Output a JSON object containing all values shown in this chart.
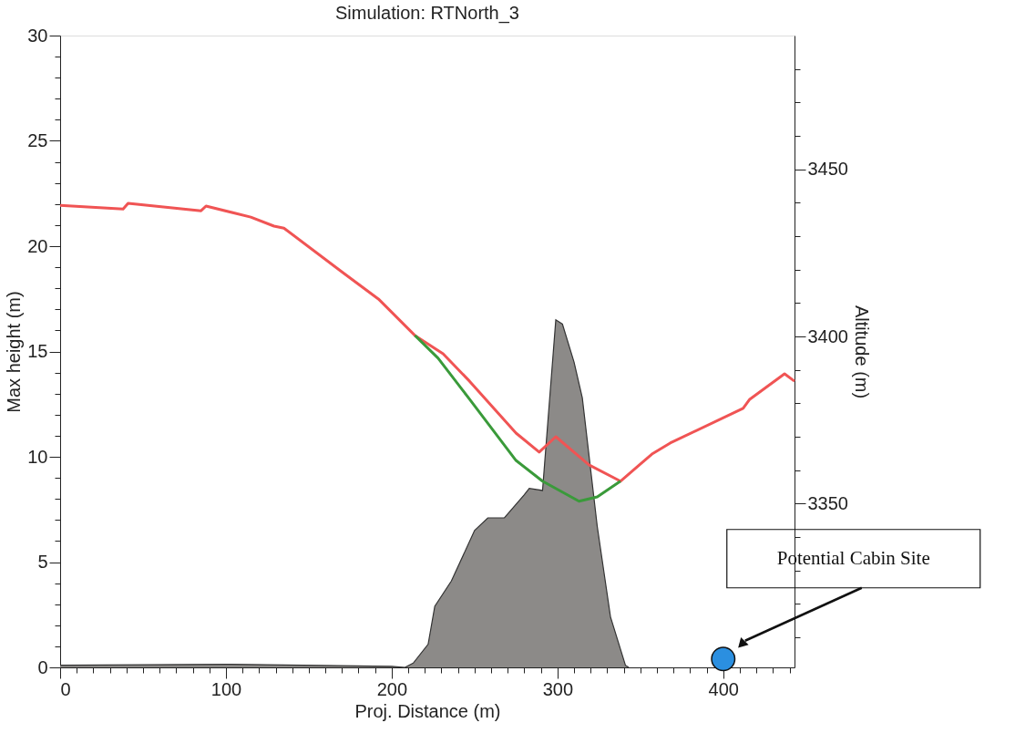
{
  "chart_data": {
    "type": "area",
    "title": "Simulation: RTNorth_3",
    "xlabel": "Proj. Distance (m)",
    "ylabel": "Max height (m)",
    "y2label": "Altitude (m)",
    "xlim": [
      0,
      443
    ],
    "xticks": [
      0,
      {
        "value": 10,
        "label": null
      },
      {
        "value": 20,
        "label": null
      },
      {
        "value": 30,
        "label": null
      },
      {
        "value": 40,
        "label": null
      },
      {
        "value": 50,
        "label": null
      },
      {
        "value": 60,
        "label": null
      },
      {
        "value": 70,
        "label": null
      },
      {
        "value": 80,
        "label": null
      },
      {
        "value": 90,
        "label": null
      },
      100,
      {
        "value": 110,
        "label": null
      },
      {
        "value": 120,
        "label": null
      },
      {
        "value": 130,
        "label": null
      },
      {
        "value": 140,
        "label": null
      },
      {
        "value": 150,
        "label": null
      },
      {
        "value": 160,
        "label": null
      },
      {
        "value": 170,
        "label": null
      },
      {
        "value": 180,
        "label": null
      },
      {
        "value": 190,
        "label": null
      },
      200,
      {
        "value": 210,
        "label": null
      },
      {
        "value": 220,
        "label": null
      },
      {
        "value": 230,
        "label": null
      },
      {
        "value": 240,
        "label": null
      },
      {
        "value": 250,
        "label": null
      },
      {
        "value": 260,
        "label": null
      },
      {
        "value": 270,
        "label": null
      },
      {
        "value": 280,
        "label": null
      },
      {
        "value": 290,
        "label": null
      },
      300,
      {
        "value": 310,
        "label": null
      },
      {
        "value": 320,
        "label": null
      },
      {
        "value": 330,
        "label": null
      },
      {
        "value": 340,
        "label": null
      },
      {
        "value": 350,
        "label": null
      },
      {
        "value": 360,
        "label": null
      },
      {
        "value": 370,
        "label": null
      },
      {
        "value": 380,
        "label": null
      },
      {
        "value": 390,
        "label": null
      },
      400,
      {
        "value": 410,
        "label": null
      },
      {
        "value": 420,
        "label": null
      },
      {
        "value": 430,
        "label": null
      },
      {
        "value": 440,
        "label": null
      }
    ],
    "ylim": [
      0,
      30
    ],
    "yticks": [
      0,
      {
        "value": 1,
        "label": null
      },
      {
        "value": 2,
        "label": null
      },
      {
        "value": 3,
        "label": null
      },
      {
        "value": 4,
        "label": null
      },
      5,
      {
        "value": 6,
        "label": null
      },
      {
        "value": 7,
        "label": null
      },
      {
        "value": 8,
        "label": null
      },
      {
        "value": 9,
        "label": null
      },
      10,
      {
        "value": 11,
        "label": null
      },
      {
        "value": 12,
        "label": null
      },
      {
        "value": 13,
        "label": null
      },
      {
        "value": 14,
        "label": null
      },
      15,
      {
        "value": 16,
        "label": null
      },
      {
        "value": 17,
        "label": null
      },
      {
        "value": 18,
        "label": null
      },
      {
        "value": 19,
        "label": null
      },
      20,
      {
        "value": 21,
        "label": null
      },
      {
        "value": 22,
        "label": null
      },
      {
        "value": 23,
        "label": null
      },
      {
        "value": 24,
        "label": null
      },
      25,
      {
        "value": 26,
        "label": null
      },
      {
        "value": 27,
        "label": null
      },
      {
        "value": 28,
        "label": null
      },
      {
        "value": 29,
        "label": null
      },
      30
    ],
    "y2lim": [
      3301,
      3490
    ],
    "y2ticks": [
      {
        "value": 3310,
        "label": null
      },
      {
        "value": 3320,
        "label": null
      },
      {
        "value": 3330,
        "label": null
      },
      {
        "value": 3340,
        "label": null
      },
      3350,
      {
        "value": 3360,
        "label": null
      },
      {
        "value": 3370,
        "label": null
      },
      {
        "value": 3380,
        "label": null
      },
      {
        "value": 3390,
        "label": null
      },
      3400,
      {
        "value": 3410,
        "label": null
      },
      {
        "value": 3420,
        "label": null
      },
      {
        "value": 3430,
        "label": null
      },
      {
        "value": 3440,
        "label": null
      },
      3450,
      {
        "value": 3460,
        "label": null
      },
      {
        "value": 3470,
        "label": null
      },
      {
        "value": 3480,
        "label": null
      }
    ],
    "grid": false,
    "series": [
      {
        "axis": "y",
        "color": "#8c8a88",
        "x": [
          0,
          100,
          200,
          208,
          213,
          222,
          226,
          236,
          250,
          258,
          268,
          280,
          283,
          291,
          299,
          303,
          310,
          315,
          324,
          332,
          341,
          343
        ],
        "values": [
          0.1,
          0.15,
          0.05,
          0,
          0.2,
          1.1,
          2.9,
          4.1,
          6.5,
          7.1,
          7.1,
          8.2,
          8.5,
          8.4,
          16.5,
          16.3,
          14.5,
          12.8,
          6.7,
          2.4,
          0.1,
          0
        ]
      },
      {
        "type": "line",
        "axis": "y2",
        "color": "#f05454",
        "x": [
          0,
          38,
          41,
          85,
          88,
          115,
          129,
          135,
          170,
          192,
          214,
          231,
          247,
          275,
          289,
          299,
          319,
          338,
          357,
          368,
          412,
          416,
          437,
          443
        ],
        "values": [
          3439.2,
          3438.1,
          3439.8,
          3437.6,
          3439.0,
          3435.7,
          3433,
          3432.4,
          3419.3,
          3411.2,
          3400.3,
          3394.8,
          3386.6,
          3371.1,
          3365.4,
          3370.0,
          3361.6,
          3356.7,
          3364.8,
          3368.1,
          3378.5,
          3381.2,
          3388.8,
          3386.6
        ]
      },
      {
        "type": "line",
        "axis": "y2",
        "color": "#3a9a3a",
        "x": [
          214,
          228,
          247,
          275,
          291,
          313,
          324,
          338
        ],
        "values": [
          3400.3,
          3393.5,
          3381.2,
          3362.9,
          3356.7,
          3350.7,
          3352.0,
          3356.7
        ]
      },
      {
        "type": "scatter",
        "axis": "y",
        "color": "#2b8fe0",
        "marker": "circle",
        "x": [
          400
        ],
        "values": [
          0.4
        ]
      }
    ],
    "annotations": [
      "Potential Cabin Site"
    ]
  }
}
